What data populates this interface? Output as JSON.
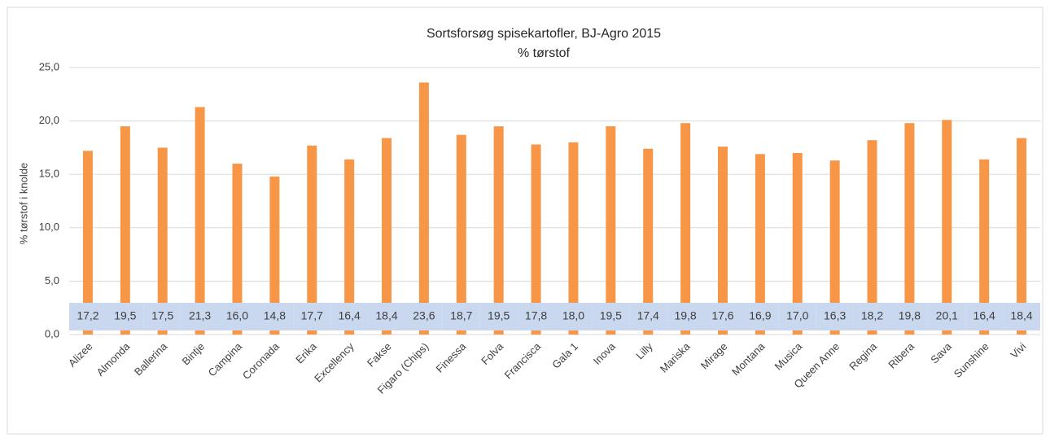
{
  "chart_data": {
    "type": "bar",
    "title": "Sortsforsøg spisekartofler, BJ-Agro 2015",
    "subtitle": "% tørstof",
    "y_label": "% tørstof i knolde",
    "categories": [
      "Alizee",
      "Almonda",
      "Ballerina",
      "Bintje",
      "Campina",
      "Coronada",
      "Erika",
      "Excellency",
      "Fakse",
      "Figaro (Chips)",
      "Finessa",
      "Folva",
      "Francisca",
      "Gala 1",
      "Inova",
      "Lilly",
      "Mariska",
      "Mirage",
      "Montana",
      "Musica",
      "Queen Anne",
      "Regina",
      "Ribera",
      "Sava",
      "Sunshine",
      "Vivi"
    ],
    "values": [
      17.2,
      19.5,
      17.5,
      21.3,
      16.0,
      14.8,
      17.7,
      16.4,
      18.4,
      23.6,
      18.7,
      19.5,
      17.8,
      18.0,
      19.5,
      17.4,
      19.8,
      17.6,
      16.9,
      17.0,
      16.3,
      18.2,
      19.8,
      20.1,
      16.4,
      18.4
    ],
    "value_labels": [
      "17,2",
      "19,5",
      "17,5",
      "21,3",
      "16,0",
      "14,8",
      "17,7",
      "16,4",
      "18,4",
      "23,6",
      "18,7",
      "19,5",
      "17,8",
      "18,0",
      "19,5",
      "17,4",
      "19,8",
      "17,6",
      "16,9",
      "17,0",
      "16,3",
      "18,2",
      "19,8",
      "20,1",
      "16,4",
      "18,4"
    ],
    "color": "#f79646",
    "ylim": [
      0,
      25
    ],
    "yticks": [
      {
        "value": 0,
        "label": "0,0"
      },
      {
        "value": 5,
        "label": "5,0"
      },
      {
        "value": 10,
        "label": "10,0"
      },
      {
        "value": 15,
        "label": "15,0"
      },
      {
        "value": 20,
        "label": "20,0"
      },
      {
        "value": 25,
        "label": "25,0"
      }
    ],
    "grid": true
  }
}
